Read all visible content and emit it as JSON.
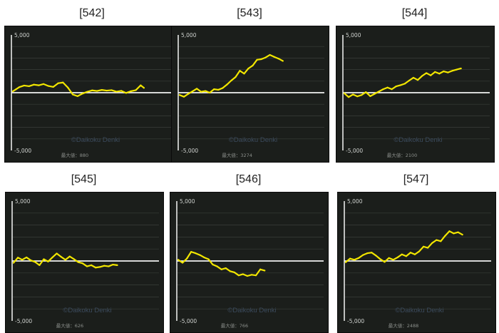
{
  "colors": {
    "background": "#ffffff",
    "panel": "#1b1e1b",
    "grid": "#3a3f3a",
    "axis": "#e8e8e8",
    "zero_line": "#f2f2f2",
    "series": "#f2e600",
    "watermark": "#3b4a5c"
  },
  "chart_data": [
    {
      "title": "[542]",
      "type": "line",
      "ylim": [
        -5000,
        5000
      ],
      "y_ticks": [
        "5,000",
        "-5,000"
      ],
      "watermark": "©Daikoku Denki",
      "max_label": "最大値：880",
      "grid": true,
      "x": [
        0,
        2,
        4,
        7,
        10,
        13,
        16,
        19,
        22,
        25,
        28,
        31,
        34,
        37,
        40,
        43,
        46,
        49,
        52,
        55,
        58,
        61,
        64,
        67,
        70,
        73,
        76,
        79,
        81
      ],
      "values": [
        120,
        300,
        480,
        620,
        560,
        700,
        640,
        750,
        580,
        500,
        820,
        880,
        450,
        -150,
        -300,
        -80,
        80,
        200,
        150,
        240,
        180,
        220,
        90,
        160,
        -20,
        130,
        220,
        640,
        420
      ]
    },
    {
      "title": "[543]",
      "type": "line",
      "ylim": [
        -5000,
        5000
      ],
      "y_ticks": [
        "5,000",
        "-5,000"
      ],
      "watermark": "©Daikoku Denki",
      "max_label": "最大値：3274",
      "grid": true,
      "x": [
        0,
        3,
        6,
        9,
        12,
        15,
        18,
        21,
        24,
        27,
        30,
        33,
        36,
        39,
        42,
        45,
        48,
        51,
        54,
        57,
        60,
        63,
        66,
        69,
        72
      ],
      "values": [
        -200,
        -350,
        -100,
        120,
        350,
        80,
        150,
        0,
        300,
        250,
        400,
        700,
        1050,
        1350,
        1900,
        1650,
        2100,
        2350,
        2850,
        2900,
        3050,
        3274,
        3100,
        2950,
        2750
      ]
    },
    {
      "title": "[544]",
      "type": "line",
      "ylim": [
        -5000,
        5000
      ],
      "y_ticks": [
        "5,000",
        "-5,000"
      ],
      "watermark": "©Daikoku Denki",
      "max_label": "最大値：2100",
      "grid": true,
      "x": [
        0,
        3,
        6,
        9,
        12,
        15,
        18,
        21,
        24,
        27,
        30,
        33,
        36,
        39,
        42,
        45,
        48,
        51,
        54,
        57,
        60,
        63,
        66,
        69,
        72,
        75,
        78,
        81
      ],
      "values": [
        -50,
        -380,
        -150,
        -320,
        -200,
        50,
        -300,
        -100,
        100,
        300,
        450,
        300,
        550,
        650,
        780,
        1050,
        1300,
        1100,
        1450,
        1700,
        1500,
        1800,
        1650,
        1850,
        1750,
        1900,
        2000,
        2100
      ]
    },
    {
      "title": "[545]",
      "type": "line",
      "ylim": [
        -5000,
        5000
      ],
      "y_ticks": [
        "5,000",
        "-5,000"
      ],
      "watermark": "©Daikoku Denki",
      "max_label": "最大値：626",
      "grid": true,
      "x": [
        0,
        3,
        6,
        9,
        12,
        15,
        18,
        21,
        24,
        27,
        30,
        33,
        36,
        39,
        42,
        45,
        48,
        51,
        54,
        57,
        60,
        63,
        66,
        69,
        72
      ],
      "values": [
        -150,
        280,
        100,
        300,
        50,
        -80,
        -350,
        150,
        -50,
        300,
        626,
        350,
        100,
        380,
        150,
        -100,
        -200,
        -450,
        -350,
        -550,
        -500,
        -400,
        -450,
        -300,
        -350
      ]
    },
    {
      "title": "[546]",
      "type": "line",
      "ylim": [
        -5000,
        5000
      ],
      "y_ticks": [
        "5,000",
        "-5,000"
      ],
      "watermark": "©Daikoku Denki",
      "max_label": "最大値：766",
      "grid": true,
      "x": [
        0,
        3,
        6,
        9,
        12,
        15,
        18,
        21,
        24,
        27,
        30,
        33,
        36,
        39,
        42,
        45,
        48,
        51,
        54,
        57,
        60
      ],
      "values": [
        100,
        -150,
        200,
        766,
        650,
        500,
        300,
        150,
        -300,
        -450,
        -700,
        -600,
        -850,
        -950,
        -1200,
        -1100,
        -1250,
        -1150,
        -1200,
        -700,
        -800
      ]
    },
    {
      "title": "[547]",
      "type": "line",
      "ylim": [
        -5000,
        5000
      ],
      "y_ticks": [
        "5,000",
        "-5,000"
      ],
      "watermark": "©Daikoku Denki",
      "max_label": "最大値：2488",
      "grid": true,
      "x": [
        0,
        3,
        6,
        9,
        12,
        15,
        18,
        21,
        24,
        27,
        30,
        33,
        36,
        39,
        42,
        45,
        48,
        51,
        54,
        57,
        60,
        63,
        66,
        69,
        72,
        75,
        78,
        81
      ],
      "values": [
        -100,
        200,
        100,
        250,
        500,
        650,
        700,
        450,
        150,
        -80,
        250,
        100,
        300,
        550,
        400,
        700,
        550,
        800,
        1200,
        1100,
        1500,
        1750,
        1650,
        2100,
        2488,
        2300,
        2400,
        2200
      ]
    }
  ]
}
